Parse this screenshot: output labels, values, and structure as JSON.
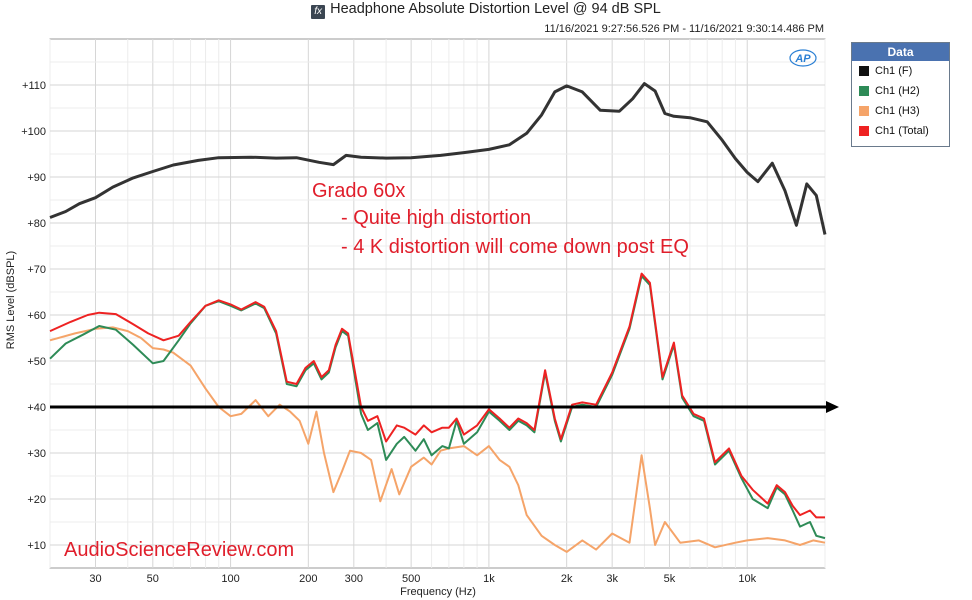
{
  "header": {
    "icon": "fx-icon",
    "title": "Headphone Absolute Distortion Level @ 94 dB SPL",
    "timestamp": "11/16/2021 9:27:56.526 PM - 11/16/2021 9:30:14.486 PM"
  },
  "legend": {
    "title": "Data",
    "items": [
      {
        "label": "Ch1 (F)",
        "color": "#111111"
      },
      {
        "label": "Ch1 (H2)",
        "color": "#2e8b57"
      },
      {
        "label": "Ch1 (H3)",
        "color": "#f5a469"
      },
      {
        "label": "Ch1 (Total)",
        "color": "#ee2222"
      }
    ]
  },
  "annotation": {
    "title": "Grado 60x",
    "lines": [
      "- Quite high distortion",
      "- 4 K distortion will come down post EQ"
    ],
    "color": "#e01e2b"
  },
  "watermark": {
    "text": "AudioScienceReview.com",
    "color": "#e01e2b"
  },
  "badge": {
    "text": "AP",
    "color": "#2a7fd4"
  },
  "chart_data": {
    "type": "line",
    "xlabel": "Frequency (Hz)",
    "ylabel": "RMS Level (dBSPL)",
    "xscale": "log",
    "xlim": [
      20,
      20000
    ],
    "ylim": [
      5,
      120
    ],
    "grid": true,
    "x_ticks": [
      {
        "value": 30,
        "label": "30"
      },
      {
        "value": 50,
        "label": "50"
      },
      {
        "value": 100,
        "label": "100"
      },
      {
        "value": 200,
        "label": "200"
      },
      {
        "value": 300,
        "label": "300"
      },
      {
        "value": 500,
        "label": "500"
      },
      {
        "value": 1000,
        "label": "1k"
      },
      {
        "value": 2000,
        "label": "2k"
      },
      {
        "value": 3000,
        "label": "3k"
      },
      {
        "value": 5000,
        "label": "5k"
      },
      {
        "value": 10000,
        "label": "10k"
      }
    ],
    "y_ticks": [
      {
        "value": 10,
        "label": "+10"
      },
      {
        "value": 20,
        "label": "+20"
      },
      {
        "value": 30,
        "label": "+30"
      },
      {
        "value": 40,
        "label": "+40"
      },
      {
        "value": 50,
        "label": "+50"
      },
      {
        "value": 60,
        "label": "+60"
      },
      {
        "value": 70,
        "label": "+70"
      },
      {
        "value": 80,
        "label": "+80"
      },
      {
        "value": 90,
        "label": "+90"
      },
      {
        "value": 100,
        "label": "+100"
      },
      {
        "value": 110,
        "label": "+110"
      }
    ],
    "reference_line": {
      "y": 40,
      "color": "#000000"
    },
    "series": [
      {
        "name": "Ch1 (F)",
        "color": "#333333",
        "points": [
          [
            20,
            81.2
          ],
          [
            23,
            82.5
          ],
          [
            26,
            84.2
          ],
          [
            30,
            85.5
          ],
          [
            35,
            87.8
          ],
          [
            42,
            89.8
          ],
          [
            50,
            91.2
          ],
          [
            60,
            92.6
          ],
          [
            75,
            93.6
          ],
          [
            90,
            94.2
          ],
          [
            120,
            94.3
          ],
          [
            150,
            94.1
          ],
          [
            180,
            94.2
          ],
          [
            220,
            93.2
          ],
          [
            250,
            92.7
          ],
          [
            280,
            94.7
          ],
          [
            320,
            94.3
          ],
          [
            400,
            94.1
          ],
          [
            500,
            94.2
          ],
          [
            650,
            94.7
          ],
          [
            800,
            95.3
          ],
          [
            1000,
            96.0
          ],
          [
            1200,
            97.0
          ],
          [
            1400,
            99.5
          ],
          [
            1600,
            103.5
          ],
          [
            1800,
            108.5
          ],
          [
            2000,
            109.8
          ],
          [
            2300,
            108.5
          ],
          [
            2700,
            104.5
          ],
          [
            3200,
            104.3
          ],
          [
            3600,
            107.0
          ],
          [
            4000,
            110.3
          ],
          [
            4400,
            108.7
          ],
          [
            4800,
            103.8
          ],
          [
            5200,
            103.2
          ],
          [
            6000,
            102.9
          ],
          [
            7000,
            102.0
          ],
          [
            8000,
            98.0
          ],
          [
            9000,
            94.0
          ],
          [
            10000,
            91.0
          ],
          [
            11000,
            89.0
          ],
          [
            12500,
            93.0
          ],
          [
            14000,
            87.0
          ],
          [
            15500,
            79.5
          ],
          [
            17000,
            88.5
          ],
          [
            18500,
            86.0
          ],
          [
            20000,
            77.5
          ]
        ]
      },
      {
        "name": "Ch1 (H2)",
        "color": "#2e8b57",
        "points": [
          [
            20,
            50.5
          ],
          [
            23,
            53.8
          ],
          [
            27,
            55.8
          ],
          [
            31,
            57.6
          ],
          [
            36,
            56.8
          ],
          [
            42,
            53.5
          ],
          [
            50,
            49.5
          ],
          [
            55,
            50.0
          ],
          [
            63,
            54.5
          ],
          [
            70,
            58.2
          ],
          [
            80,
            62.0
          ],
          [
            90,
            63.0
          ],
          [
            100,
            62.0
          ],
          [
            110,
            61.0
          ],
          [
            125,
            62.5
          ],
          [
            135,
            61.5
          ],
          [
            150,
            56.0
          ],
          [
            165,
            45.0
          ],
          [
            180,
            44.5
          ],
          [
            195,
            48.0
          ],
          [
            210,
            49.5
          ],
          [
            225,
            46.0
          ],
          [
            240,
            47.5
          ],
          [
            255,
            53.0
          ],
          [
            270,
            56.5
          ],
          [
            285,
            55.5
          ],
          [
            300,
            48.0
          ],
          [
            320,
            38.5
          ],
          [
            340,
            35.0
          ],
          [
            370,
            36.5
          ],
          [
            400,
            28.5
          ],
          [
            440,
            32.0
          ],
          [
            470,
            33.5
          ],
          [
            520,
            30.5
          ],
          [
            560,
            33.0
          ],
          [
            600,
            29.5
          ],
          [
            660,
            31.5
          ],
          [
            700,
            31.0
          ],
          [
            750,
            37.0
          ],
          [
            800,
            32.0
          ],
          [
            900,
            34.5
          ],
          [
            1000,
            39.0
          ],
          [
            1100,
            37.0
          ],
          [
            1200,
            35.0
          ],
          [
            1300,
            37.0
          ],
          [
            1400,
            36.0
          ],
          [
            1500,
            34.5
          ],
          [
            1650,
            47.5
          ],
          [
            1800,
            37.0
          ],
          [
            1900,
            32.5
          ],
          [
            2100,
            40.0
          ],
          [
            2300,
            40.5
          ],
          [
            2600,
            40.0
          ],
          [
            3000,
            47.0
          ],
          [
            3500,
            57.0
          ],
          [
            3900,
            68.5
          ],
          [
            4200,
            66.5
          ],
          [
            4700,
            46.0
          ],
          [
            5200,
            53.5
          ],
          [
            5600,
            42.0
          ],
          [
            6200,
            38.0
          ],
          [
            6800,
            37.0
          ],
          [
            7500,
            27.5
          ],
          [
            8500,
            30.5
          ],
          [
            9500,
            24.5
          ],
          [
            10500,
            20.0
          ],
          [
            12000,
            18.0
          ],
          [
            13000,
            22.5
          ],
          [
            14000,
            21.0
          ],
          [
            15000,
            17.5
          ],
          [
            16000,
            14.0
          ],
          [
            17500,
            15.0
          ],
          [
            18500,
            12.0
          ],
          [
            20000,
            11.5
          ]
        ]
      },
      {
        "name": "Ch1 (H3)",
        "color": "#f5a469",
        "points": [
          [
            20,
            54.5
          ],
          [
            25,
            56.0
          ],
          [
            30,
            57.0
          ],
          [
            35,
            57.3
          ],
          [
            40,
            56.5
          ],
          [
            45,
            55.0
          ],
          [
            50,
            52.8
          ],
          [
            55,
            52.5
          ],
          [
            60,
            51.8
          ],
          [
            70,
            49.0
          ],
          [
            80,
            44.0
          ],
          [
            90,
            40.0
          ],
          [
            100,
            38.0
          ],
          [
            110,
            38.5
          ],
          [
            125,
            41.5
          ],
          [
            140,
            38.0
          ],
          [
            155,
            40.5
          ],
          [
            170,
            39.0
          ],
          [
            185,
            37.0
          ],
          [
            200,
            32.0
          ],
          [
            215,
            39.0
          ],
          [
            230,
            30.0
          ],
          [
            250,
            21.5
          ],
          [
            270,
            26.0
          ],
          [
            290,
            30.5
          ],
          [
            320,
            30.0
          ],
          [
            350,
            28.5
          ],
          [
            380,
            19.5
          ],
          [
            420,
            26.5
          ],
          [
            450,
            21.0
          ],
          [
            500,
            27.0
          ],
          [
            560,
            29.0
          ],
          [
            600,
            27.5
          ],
          [
            650,
            30.5
          ],
          [
            700,
            31.0
          ],
          [
            800,
            31.5
          ],
          [
            900,
            29.5
          ],
          [
            1000,
            31.5
          ],
          [
            1100,
            28.5
          ],
          [
            1200,
            27.0
          ],
          [
            1300,
            23.0
          ],
          [
            1400,
            16.5
          ],
          [
            1600,
            12.0
          ],
          [
            1800,
            10.0
          ],
          [
            2000,
            8.5
          ],
          [
            2300,
            11.0
          ],
          [
            2600,
            9.0
          ],
          [
            3000,
            12.5
          ],
          [
            3500,
            10.5
          ],
          [
            3900,
            29.5
          ],
          [
            4200,
            18.0
          ],
          [
            4400,
            10.0
          ],
          [
            4800,
            15.0
          ],
          [
            5500,
            10.5
          ],
          [
            6500,
            11.0
          ],
          [
            7500,
            9.5
          ],
          [
            9000,
            10.5
          ],
          [
            10000,
            11.0
          ],
          [
            12000,
            11.5
          ],
          [
            14000,
            11.0
          ],
          [
            16000,
            10.0
          ],
          [
            18000,
            11.0
          ],
          [
            20000,
            10.5
          ]
        ]
      },
      {
        "name": "Ch1 (Total)",
        "color": "#ee2222",
        "points": [
          [
            20,
            56.5
          ],
          [
            24,
            58.5
          ],
          [
            28,
            60.0
          ],
          [
            31,
            60.5
          ],
          [
            36,
            60.2
          ],
          [
            42,
            58.0
          ],
          [
            48,
            56.0
          ],
          [
            55,
            54.5
          ],
          [
            63,
            55.5
          ],
          [
            70,
            58.5
          ],
          [
            80,
            62.0
          ],
          [
            90,
            63.2
          ],
          [
            100,
            62.3
          ],
          [
            110,
            61.2
          ],
          [
            125,
            62.8
          ],
          [
            135,
            61.8
          ],
          [
            150,
            56.5
          ],
          [
            165,
            45.5
          ],
          [
            180,
            45.0
          ],
          [
            195,
            48.5
          ],
          [
            210,
            50.0
          ],
          [
            225,
            46.5
          ],
          [
            240,
            48.0
          ],
          [
            255,
            53.5
          ],
          [
            270,
            57.0
          ],
          [
            285,
            56.0
          ],
          [
            300,
            49.0
          ],
          [
            320,
            40.0
          ],
          [
            340,
            37.0
          ],
          [
            370,
            38.0
          ],
          [
            400,
            32.5
          ],
          [
            440,
            36.0
          ],
          [
            470,
            35.5
          ],
          [
            520,
            34.0
          ],
          [
            560,
            36.0
          ],
          [
            600,
            34.5
          ],
          [
            660,
            35.5
          ],
          [
            700,
            35.5
          ],
          [
            750,
            37.5
          ],
          [
            800,
            34.0
          ],
          [
            900,
            36.0
          ],
          [
            1000,
            39.5
          ],
          [
            1100,
            37.5
          ],
          [
            1200,
            35.5
          ],
          [
            1300,
            37.5
          ],
          [
            1400,
            36.5
          ],
          [
            1500,
            35.0
          ],
          [
            1650,
            48.0
          ],
          [
            1800,
            37.5
          ],
          [
            1900,
            33.0
          ],
          [
            2100,
            40.5
          ],
          [
            2300,
            41.0
          ],
          [
            2600,
            40.5
          ],
          [
            3000,
            47.5
          ],
          [
            3500,
            57.5
          ],
          [
            3900,
            69.0
          ],
          [
            4200,
            67.0
          ],
          [
            4700,
            46.5
          ],
          [
            5200,
            54.0
          ],
          [
            5600,
            42.5
          ],
          [
            6200,
            38.5
          ],
          [
            6800,
            37.5
          ],
          [
            7500,
            28.0
          ],
          [
            8500,
            31.0
          ],
          [
            9500,
            25.0
          ],
          [
            10500,
            22.0
          ],
          [
            12000,
            19.0
          ],
          [
            13000,
            23.0
          ],
          [
            14000,
            21.5
          ],
          [
            15000,
            18.5
          ],
          [
            16000,
            16.5
          ],
          [
            17500,
            17.5
          ],
          [
            18500,
            16.0
          ],
          [
            20000,
            16.0
          ]
        ]
      }
    ]
  }
}
